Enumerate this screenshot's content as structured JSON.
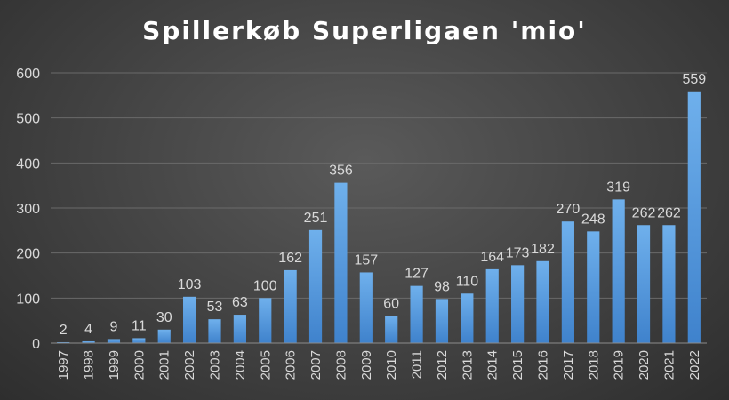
{
  "chart_data": {
    "type": "bar",
    "title": "Spillerkøb Superligaen 'mio'",
    "xlabel": "",
    "ylabel": "",
    "ylim": [
      0,
      600
    ],
    "yticks": [
      0,
      100,
      200,
      300,
      400,
      500,
      600
    ],
    "categories": [
      "1997",
      "1998",
      "1999",
      "2000",
      "2001",
      "2002",
      "2003",
      "2004",
      "2005",
      "2006",
      "2007",
      "2008",
      "2009",
      "2010",
      "2011",
      "2012",
      "2013",
      "2014",
      "2015",
      "2016",
      "2017",
      "2018",
      "2019",
      "2020",
      "2021",
      "2022"
    ],
    "series": [
      {
        "values": [
          2,
          4,
          9,
          11,
          30,
          103,
          53,
          63,
          100,
          162,
          251,
          356,
          157,
          60,
          127,
          98,
          110,
          164,
          173,
          182,
          270,
          248,
          319,
          262,
          262,
          559
        ]
      }
    ],
    "data_labels": [
      "2",
      "4",
      "9",
      "11",
      "30",
      "103",
      "53",
      "63",
      "100",
      "162",
      "251",
      "356",
      "157",
      "60",
      "127",
      "98",
      "110",
      "164",
      "173",
      "182",
      "270",
      "248",
      "319",
      "262",
      "262",
      "559"
    ],
    "grid": true,
    "legend": "none",
    "colors": {
      "bar_top": "#6fb0ec",
      "bar_bottom": "#3f82cc",
      "text": "#d9d9d9",
      "gridline": "#6a6a6a",
      "axis": "#8c8c8c",
      "title": "#ffffff"
    }
  }
}
